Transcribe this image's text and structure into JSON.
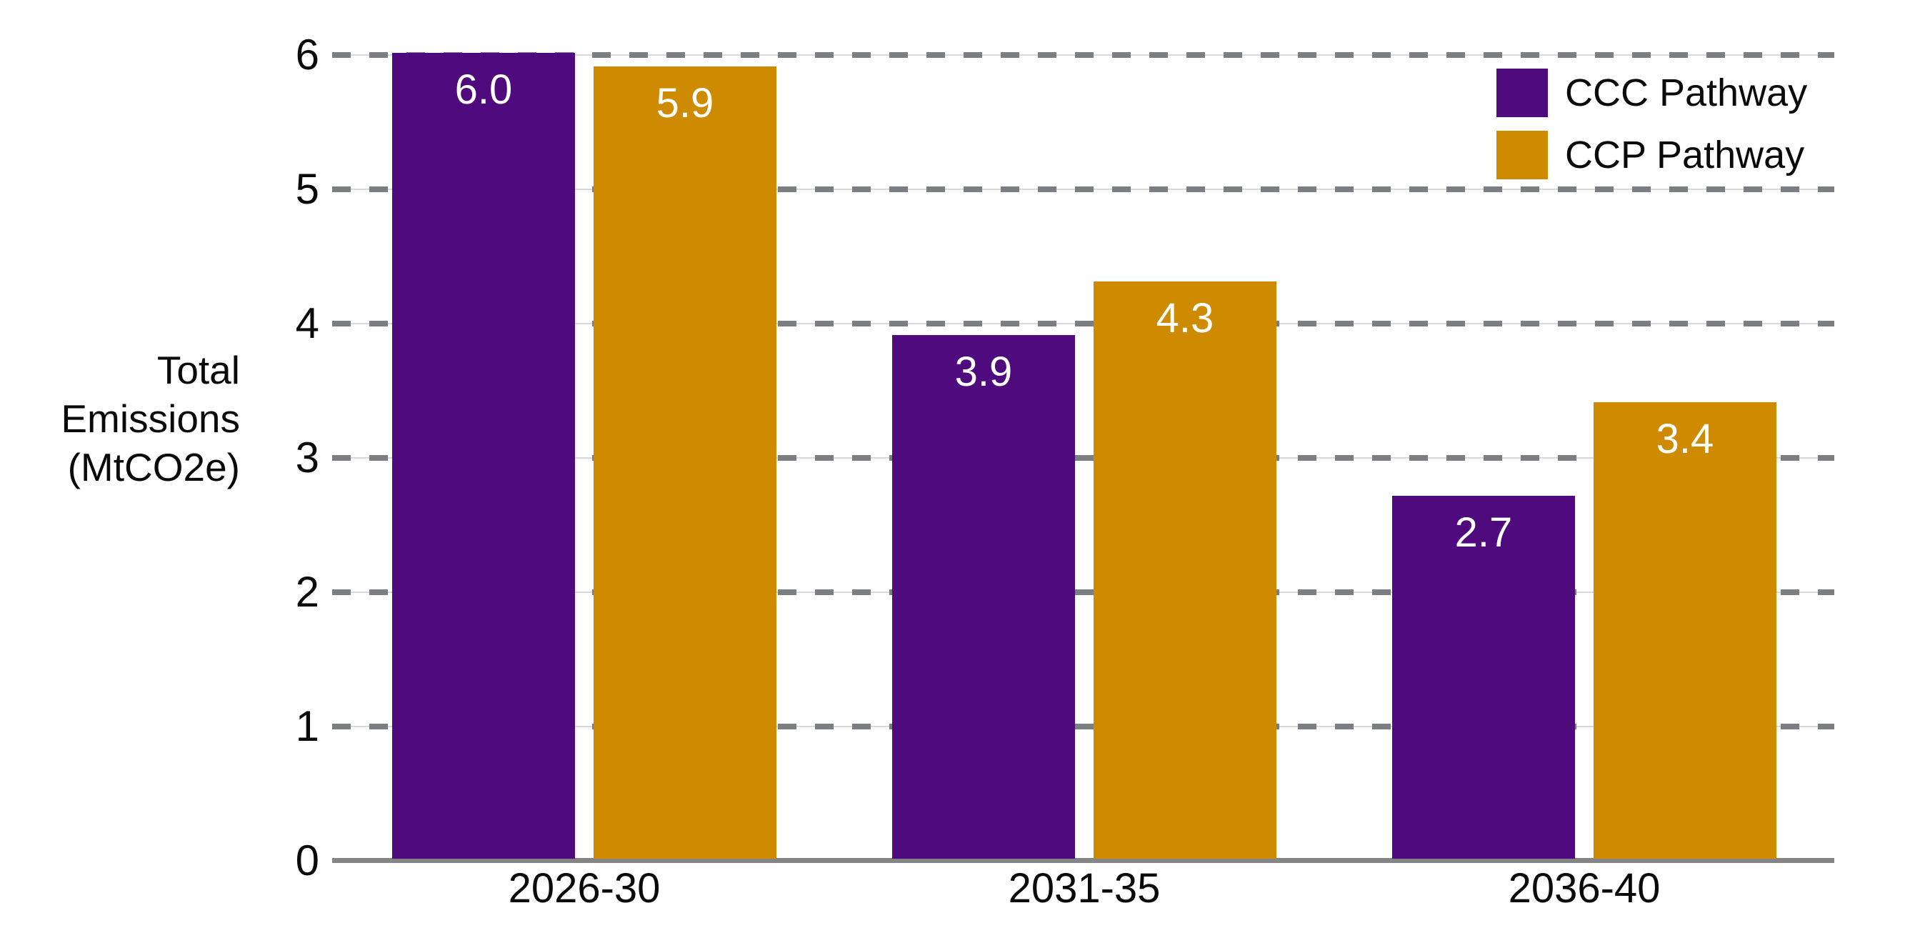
{
  "chart_data": {
    "type": "bar",
    "title": "",
    "categories": [
      "2026-30",
      "2031-35",
      "2036-40"
    ],
    "series": [
      {
        "name": "CCC Pathway",
        "color": "#4F0A7D",
        "values": [
          6.0,
          3.9,
          2.7
        ],
        "value_labels": [
          "6.0",
          "3.9",
          "2.7"
        ]
      },
      {
        "name": "CCP Pathway",
        "color": "#CE8B00",
        "values": [
          5.9,
          4.3,
          3.4
        ],
        "value_labels": [
          "5.9",
          "4.3",
          "3.4"
        ]
      }
    ],
    "ylabel_lines": [
      "Total",
      "Emissions",
      "(MtCO2e)"
    ],
    "ylabel": "Total Emissions (MtCO2e)",
    "yticks": [
      0,
      1,
      2,
      3,
      4,
      5,
      6
    ],
    "ylim": [
      0,
      6
    ],
    "grid": "horizontal dashed gridlines at integer values, drawn behind bars",
    "legend_position": "top-right",
    "bar_value_label_position": "inside-top, centered, white text"
  },
  "colors": {
    "ccc_pathway": "#4F0A7D",
    "ccp_pathway": "#CE8B00",
    "grid_dash": "#7b7f83",
    "grid_thin_line": "#d8d8d8",
    "axis_baseline": "#858585",
    "tick_text": "#0a0a0a",
    "bar_label_text": "#ffffff",
    "background": "#ffffff"
  }
}
